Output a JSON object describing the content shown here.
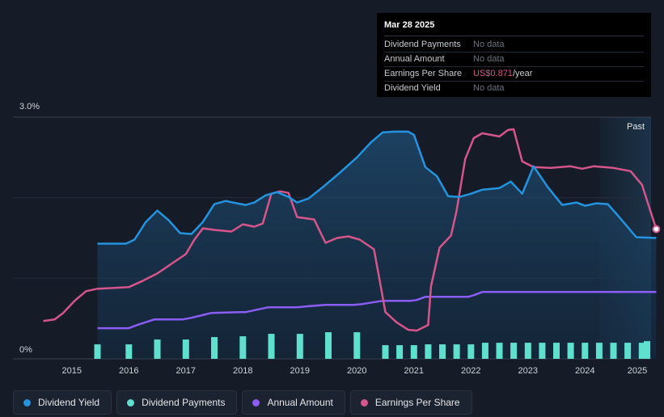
{
  "tooltip": {
    "date": "Mar 28 2025",
    "rows": [
      {
        "label": "Dividend Payments",
        "value": "No data"
      },
      {
        "label": "Annual Amount",
        "value": "No data"
      },
      {
        "label": "Earnings Per Share",
        "value": "US$0.871",
        "unit": "/year"
      },
      {
        "label": "Dividend Yield",
        "value": "No data"
      }
    ]
  },
  "legend": [
    {
      "label": "Dividend Yield",
      "color": "#2394df"
    },
    {
      "label": "Dividend Payments",
      "color": "#5fe0cf"
    },
    {
      "label": "Annual Amount",
      "color": "#8b5cf6"
    },
    {
      "label": "Earnings Per Share",
      "color": "#d6558b"
    }
  ],
  "chart_data": {
    "type": "line",
    "y_top_label": "3.0%",
    "y_bottom_label": "0%",
    "past_label": "Past",
    "ylim": [
      0,
      3.0
    ],
    "xlim": [
      2014.5,
      2025.25
    ],
    "x_tick_labels": [
      "2015",
      "2016",
      "2017",
      "2018",
      "2019",
      "2020",
      "2021",
      "2022",
      "2023",
      "2024",
      "2025"
    ],
    "past_region_start": 2024.25,
    "colors": {
      "yield": "#2394df",
      "payments": "#5fe0cf",
      "annual": "#8b5cf6",
      "eps": "#d6558b"
    },
    "series": [
      {
        "name": "Dividend Yield",
        "unit": "%",
        "points": [
          [
            2015.45,
            1.43
          ],
          [
            2015.95,
            1.43
          ],
          [
            2016.1,
            1.48
          ],
          [
            2016.3,
            1.7
          ],
          [
            2016.5,
            1.84
          ],
          [
            2016.7,
            1.72
          ],
          [
            2016.9,
            1.56
          ],
          [
            2017.1,
            1.55
          ],
          [
            2017.3,
            1.7
          ],
          [
            2017.5,
            1.92
          ],
          [
            2017.7,
            1.96
          ],
          [
            2017.9,
            1.93
          ],
          [
            2018.05,
            1.91
          ],
          [
            2018.2,
            1.94
          ],
          [
            2018.4,
            2.03
          ],
          [
            2018.6,
            2.07
          ],
          [
            2018.8,
            2.01
          ],
          [
            2018.95,
            1.94
          ],
          [
            2019.15,
            1.99
          ],
          [
            2019.4,
            2.13
          ],
          [
            2019.7,
            2.31
          ],
          [
            2020.0,
            2.5
          ],
          [
            2020.25,
            2.69
          ],
          [
            2020.45,
            2.81
          ],
          [
            2020.65,
            2.82
          ],
          [
            2020.9,
            2.82
          ],
          [
            2021.0,
            2.78
          ],
          [
            2021.2,
            2.38
          ],
          [
            2021.4,
            2.27
          ],
          [
            2021.6,
            2.02
          ],
          [
            2021.8,
            2.01
          ],
          [
            2022.0,
            2.05
          ],
          [
            2022.2,
            2.1
          ],
          [
            2022.5,
            2.12
          ],
          [
            2022.7,
            2.2
          ],
          [
            2022.9,
            2.05
          ],
          [
            2023.1,
            2.39
          ],
          [
            2023.35,
            2.13
          ],
          [
            2023.6,
            1.91
          ],
          [
            2023.85,
            1.94
          ],
          [
            2024.0,
            1.9
          ],
          [
            2024.2,
            1.93
          ],
          [
            2024.4,
            1.92
          ],
          [
            2024.6,
            1.76
          ],
          [
            2024.9,
            1.51
          ],
          [
            2025.25,
            1.5
          ]
        ]
      },
      {
        "name": "Earnings Per Share",
        "unit": "relative",
        "points": [
          [
            2014.5,
            0.47
          ],
          [
            2014.7,
            0.49
          ],
          [
            2014.85,
            0.57
          ],
          [
            2015.05,
            0.72
          ],
          [
            2015.25,
            0.84
          ],
          [
            2015.45,
            0.87
          ],
          [
            2015.75,
            0.88
          ],
          [
            2016.0,
            0.89
          ],
          [
            2016.25,
            0.97
          ],
          [
            2016.5,
            1.06
          ],
          [
            2016.75,
            1.18
          ],
          [
            2017.0,
            1.3
          ],
          [
            2017.15,
            1.48
          ],
          [
            2017.3,
            1.62
          ],
          [
            2017.5,
            1.6
          ],
          [
            2017.8,
            1.58
          ],
          [
            2018.0,
            1.67
          ],
          [
            2018.2,
            1.64
          ],
          [
            2018.35,
            1.68
          ],
          [
            2018.5,
            2.05
          ],
          [
            2018.65,
            2.08
          ],
          [
            2018.8,
            2.06
          ],
          [
            2018.95,
            1.76
          ],
          [
            2019.25,
            1.73
          ],
          [
            2019.45,
            1.44
          ],
          [
            2019.65,
            1.5
          ],
          [
            2019.85,
            1.52
          ],
          [
            2020.05,
            1.48
          ],
          [
            2020.3,
            1.36
          ],
          [
            2020.4,
            0.97
          ],
          [
            2020.5,
            0.58
          ],
          [
            2020.7,
            0.45
          ],
          [
            2020.9,
            0.36
          ],
          [
            2021.05,
            0.35
          ],
          [
            2021.25,
            0.42
          ],
          [
            2021.3,
            0.9
          ],
          [
            2021.45,
            1.38
          ],
          [
            2021.65,
            1.53
          ],
          [
            2021.75,
            1.84
          ],
          [
            2021.9,
            2.48
          ],
          [
            2022.05,
            2.74
          ],
          [
            2022.2,
            2.8
          ],
          [
            2022.5,
            2.76
          ],
          [
            2022.65,
            2.84
          ],
          [
            2022.75,
            2.85
          ],
          [
            2022.9,
            2.45
          ],
          [
            2023.1,
            2.38
          ],
          [
            2023.4,
            2.37
          ],
          [
            2023.75,
            2.39
          ],
          [
            2023.95,
            2.36
          ],
          [
            2024.15,
            2.39
          ],
          [
            2024.5,
            2.37
          ],
          [
            2024.8,
            2.33
          ],
          [
            2025.0,
            2.16
          ],
          [
            2025.25,
            1.61
          ]
        ]
      },
      {
        "name": "Annual Amount",
        "unit": "relative",
        "points": [
          [
            2015.45,
            0.38
          ],
          [
            2016.0,
            0.38
          ],
          [
            2016.15,
            0.42
          ],
          [
            2016.45,
            0.49
          ],
          [
            2016.95,
            0.49
          ],
          [
            2017.1,
            0.51
          ],
          [
            2017.45,
            0.57
          ],
          [
            2017.95,
            0.58
          ],
          [
            2018.05,
            0.58
          ],
          [
            2018.45,
            0.64
          ],
          [
            2018.95,
            0.64
          ],
          [
            2019.1,
            0.65
          ],
          [
            2019.45,
            0.67
          ],
          [
            2019.95,
            0.67
          ],
          [
            2020.1,
            0.68
          ],
          [
            2020.45,
            0.72
          ],
          [
            2020.95,
            0.72
          ],
          [
            2021.05,
            0.73
          ],
          [
            2021.2,
            0.77
          ],
          [
            2021.95,
            0.77
          ],
          [
            2022.05,
            0.79
          ],
          [
            2022.2,
            0.83
          ],
          [
            2025.25,
            0.83
          ]
        ]
      },
      {
        "name": "Dividend Payments",
        "unit": "relative",
        "x": [
          2015.45,
          2016.0,
          2016.5,
          2017.0,
          2017.5,
          2018.0,
          2018.5,
          2019.0,
          2019.5,
          2020.0,
          2020.5,
          2020.75,
          2021.0,
          2021.25,
          2021.5,
          2021.75,
          2022.0,
          2022.25,
          2022.5,
          2022.75,
          2023.0,
          2023.25,
          2023.5,
          2023.75,
          2024.0,
          2024.25,
          2024.5,
          2024.75,
          2025.0,
          2025.25
        ],
        "values": [
          0.18,
          0.18,
          0.24,
          0.24,
          0.27,
          0.28,
          0.31,
          0.31,
          0.33,
          0.33,
          0.17,
          0.17,
          0.17,
          0.18,
          0.18,
          0.18,
          0.18,
          0.2,
          0.2,
          0.2,
          0.2,
          0.2,
          0.2,
          0.2,
          0.2,
          0.2,
          0.2,
          0.2,
          0.2,
          0.22
        ]
      }
    ]
  }
}
